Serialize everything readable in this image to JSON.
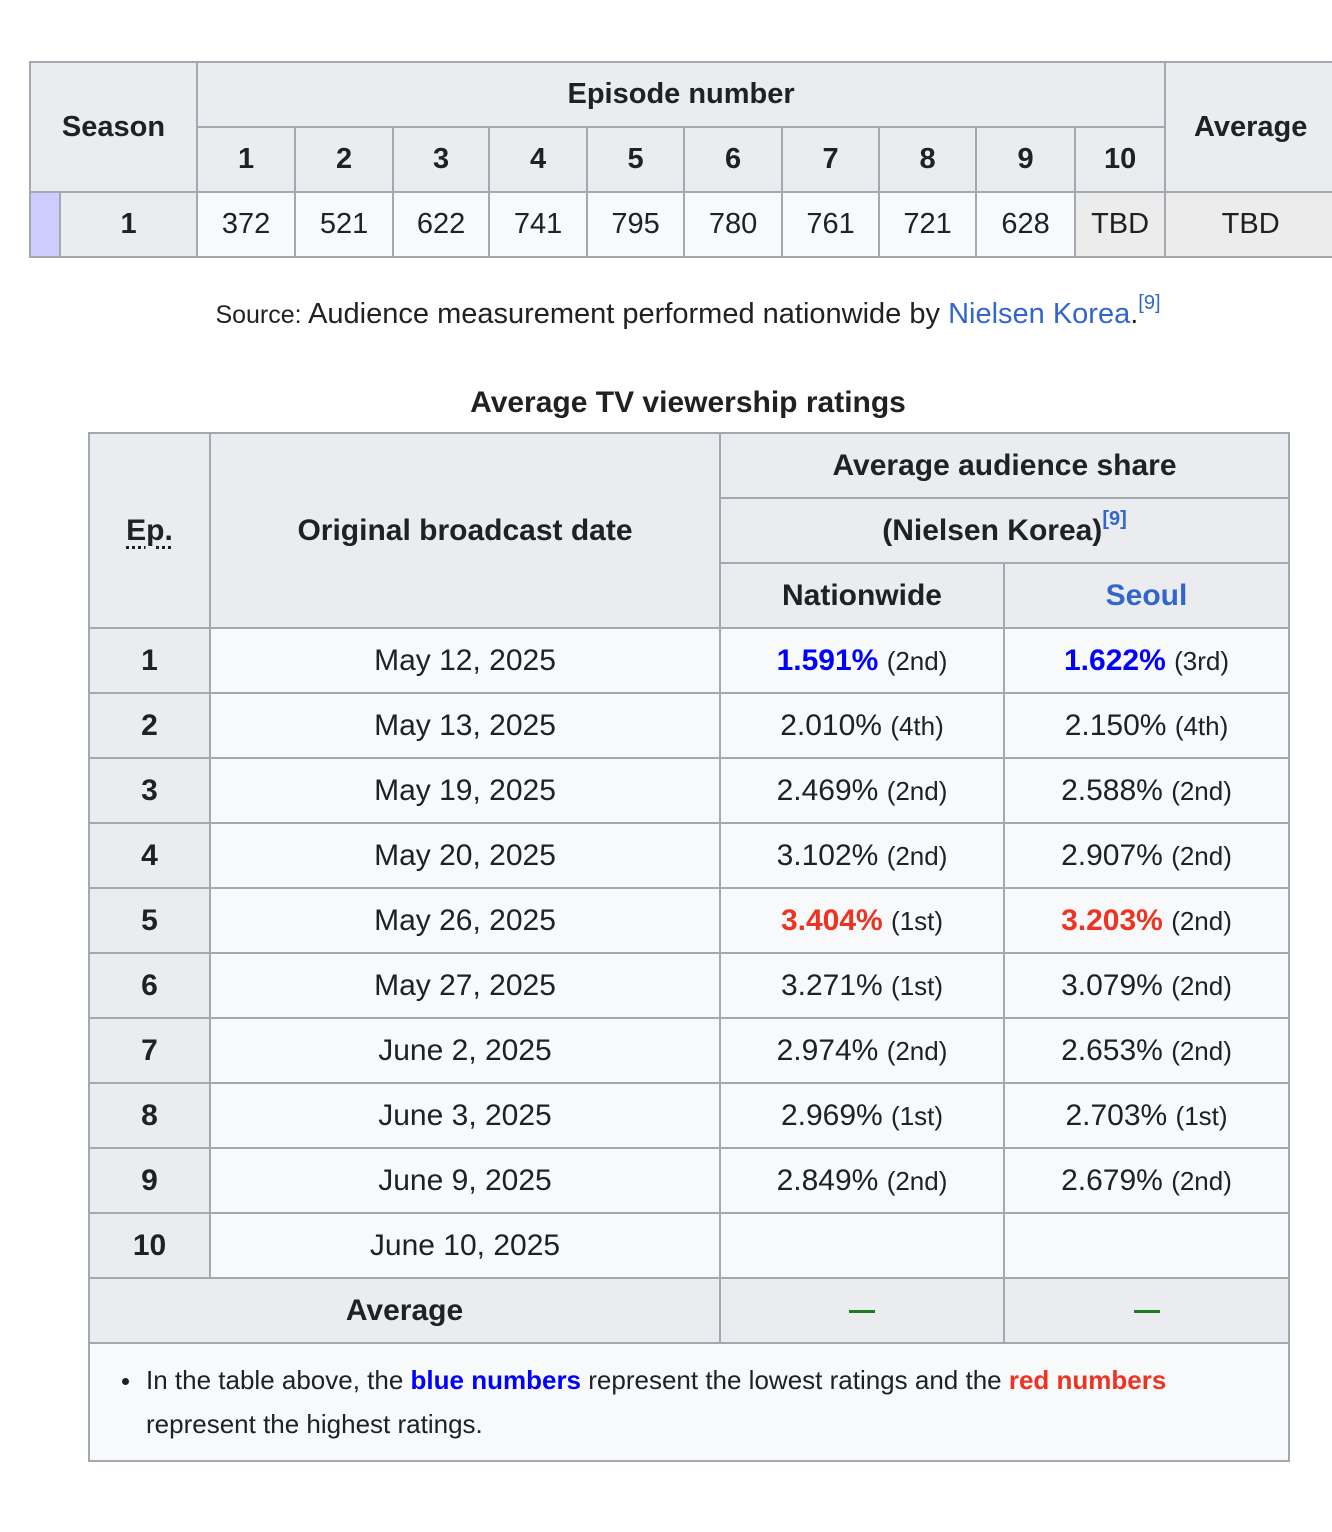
{
  "viewers_table": {
    "season_header": "Season",
    "episode_header": "Episode number",
    "average_header": "Average",
    "episode_numbers": [
      "1",
      "2",
      "3",
      "4",
      "5",
      "6",
      "7",
      "8",
      "9",
      "10"
    ],
    "season": "1",
    "values": [
      "372",
      "521",
      "622",
      "741",
      "795",
      "780",
      "761",
      "721",
      "628",
      "TBD"
    ],
    "average": "TBD",
    "colors": {
      "season_swatch": "#ccccff",
      "header_bg": "#eaecf0"
    }
  },
  "source": {
    "label": "Source:",
    "text": " Audience measurement performed nationwide by ",
    "link": "Nielsen Korea",
    "after": ".",
    "ref": "[9]"
  },
  "ratings": {
    "caption": "Average TV viewership ratings",
    "ep_header": "Ep.",
    "date_header": "Original broadcast date",
    "share_header": "Average audience share",
    "nielsen_header": "(Nielsen Korea)",
    "nielsen_ref": "[9]",
    "nationwide_header": "Nationwide",
    "seoul_header": "Seoul",
    "rows": [
      {
        "ep": "1",
        "date": "May 12, 2025",
        "nat": "1.591%",
        "nat_rank": "(2nd)",
        "seoul": "1.622%",
        "seoul_rank": "(3rd)"
      },
      {
        "ep": "2",
        "date": "May 13, 2025",
        "nat": "2.010%",
        "nat_rank": "(4th)",
        "seoul": "2.150%",
        "seoul_rank": "(4th)"
      },
      {
        "ep": "3",
        "date": "May 19, 2025",
        "nat": "2.469%",
        "nat_rank": "(2nd)",
        "seoul": "2.588%",
        "seoul_rank": "(2nd)"
      },
      {
        "ep": "4",
        "date": "May 20, 2025",
        "nat": "3.102%",
        "nat_rank": "(2nd)",
        "seoul": "2.907%",
        "seoul_rank": "(2nd)"
      },
      {
        "ep": "5",
        "date": "May 26, 2025",
        "nat": "3.404%",
        "nat_rank": "(1st)",
        "seoul": "3.203%",
        "seoul_rank": "(2nd)"
      },
      {
        "ep": "6",
        "date": "May 27, 2025",
        "nat": "3.271%",
        "nat_rank": "(1st)",
        "seoul": "3.079%",
        "seoul_rank": "(2nd)"
      },
      {
        "ep": "7",
        "date": "June 2, 2025",
        "nat": "2.974%",
        "nat_rank": "(2nd)",
        "seoul": "2.653%",
        "seoul_rank": "(2nd)"
      },
      {
        "ep": "8",
        "date": "June 3, 2025",
        "nat": "2.969%",
        "nat_rank": "(1st)",
        "seoul": "2.703%",
        "seoul_rank": "(1st)"
      },
      {
        "ep": "9",
        "date": "June 9, 2025",
        "nat": "2.849%",
        "nat_rank": "(2nd)",
        "seoul": "2.679%",
        "seoul_rank": "(2nd)"
      },
      {
        "ep": "10",
        "date": "June 10, 2025",
        "nat": "",
        "nat_rank": "",
        "seoul": "",
        "seoul_rank": ""
      }
    ],
    "average_label": "Average",
    "note": {
      "before": "In the table above, the ",
      "blue": "blue numbers",
      "middle": " represent the lowest ratings and the ",
      "red": "red numbers",
      "after": " represent the highest ratings."
    },
    "colors": {
      "lowest": "#0000ff",
      "highest": "#ee3322",
      "dash": "#1e7b1e",
      "link": "#3366cc"
    }
  }
}
